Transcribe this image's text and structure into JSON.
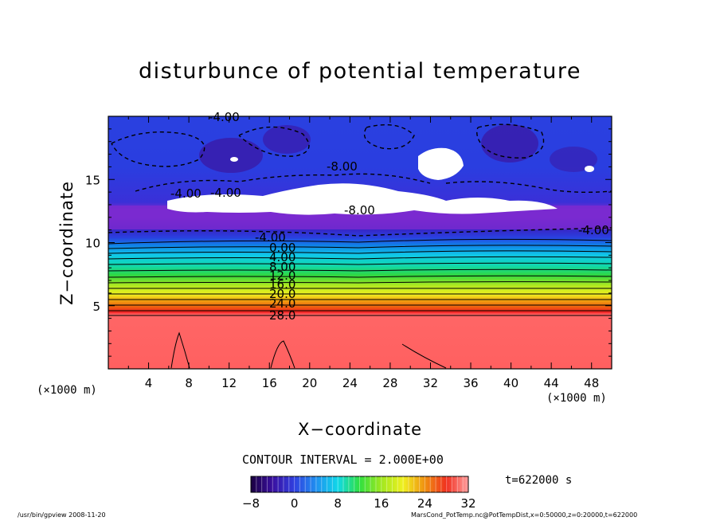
{
  "chart_data": {
    "type": "heatmap",
    "title": "disturbunce of potential temperature",
    "xlabel": "X−coordinate",
    "ylabel": "Z−coordinate",
    "x_unit_left": "(×1000 m)",
    "x_unit_right": "(×1000 m)",
    "xlim": [
      0,
      50
    ],
    "ylim": [
      0,
      20
    ],
    "x_ticks": [
      "4",
      "8",
      "12",
      "16",
      "20",
      "24",
      "28",
      "32",
      "36",
      "40",
      "44",
      "48"
    ],
    "y_ticks": [
      "5",
      "10",
      "15"
    ],
    "contour_interval": "CONTOUR INTERVAL = 2.000E+00",
    "contour_labels": [
      "-4.00",
      "-4.00",
      "-4.00",
      "-8.00",
      "-8.00",
      "-4.00",
      "-4.00",
      "0.00",
      "4.00",
      "8.00",
      "12.0",
      "16.0",
      "20.0",
      "24.0",
      "28.0"
    ],
    "colorbar": {
      "min": -8,
      "max": 32,
      "ticks": [
        "−8",
        "0",
        "8",
        "16",
        "24",
        "32"
      ]
    },
    "time": "t=622000 s",
    "colors": {
      "low": "#2f0a7a",
      "purple": "#7a2ad0",
      "blue": "#2a3ee0",
      "cyan": "#10d8e8",
      "green": "#30e040",
      "yellow": "#f0f020",
      "orange": "#f08010",
      "red": "#f02020",
      "salmon": "#ff6666"
    }
  },
  "footer": {
    "left": "/usr/bin/gpview   2008-11-20",
    "right": "MarsCond_PotTemp.nc@PotTempDist,x=0:50000,z=0:20000,t=622000"
  }
}
